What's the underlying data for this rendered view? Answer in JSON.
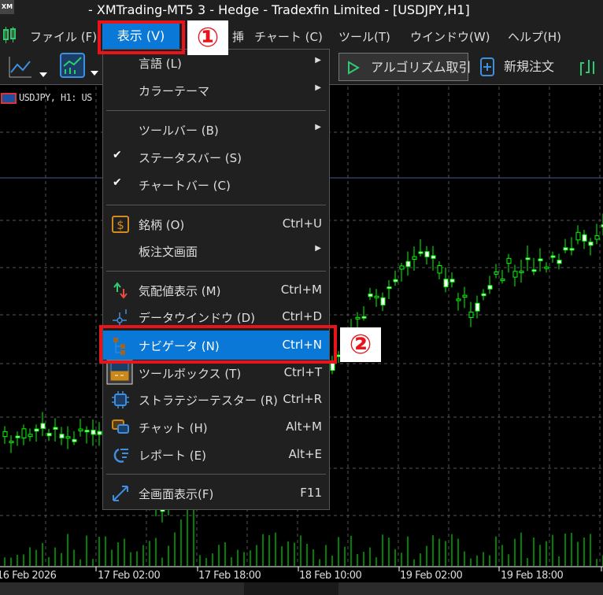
{
  "window": {
    "title": "- XMTrading-MT5 3 - Hedge - Tradexfin Limited - [USDJPY,H1]",
    "logo": "XM"
  },
  "menubar": {
    "items": [
      "ファイル (F)",
      "表示 (V)",
      "挿",
      "チャート (C)",
      "ツール(T)",
      "ウインドウ(W)",
      "ヘルプ(H)"
    ]
  },
  "toolbar": {
    "algo_trading": "アルゴリズム取引",
    "new_order": "新規注文"
  },
  "chart": {
    "symbol_label": "USDJPY, H1: US",
    "up_color": "#00ff00",
    "time_labels": [
      "16 Feb 2026",
      "17 Feb 02:00",
      "17 Feb 18:00",
      "18 Feb 10:00",
      "19 Feb 02:00",
      "19 Feb 18:00"
    ]
  },
  "dropdown": {
    "items": [
      {
        "label": "言語 (L)",
        "shortcut": "",
        "submenu": true
      },
      {
        "label": "カラーテーマ",
        "shortcut": "",
        "submenu": true
      },
      {
        "label": "ツールバー (B)",
        "shortcut": "",
        "submenu": true
      },
      {
        "label": "ステータスバー (S)",
        "shortcut": "",
        "checked": true
      },
      {
        "label": "チャートバー (C)",
        "shortcut": "",
        "checked": true
      },
      {
        "label": "銘柄 (O)",
        "shortcut": "Ctrl+U",
        "icon": "dollar-icon"
      },
      {
        "label": "板注文画面",
        "shortcut": "",
        "submenu": true
      },
      {
        "label": "気配値表示 (M)",
        "shortcut": "Ctrl+M",
        "icon": "market-watch-icon"
      },
      {
        "label": "データウインドウ (D)",
        "shortcut": "Ctrl+D",
        "icon": "crosshair-icon"
      },
      {
        "label": "ナビゲータ (N)",
        "shortcut": "Ctrl+N",
        "icon": "navigator-icon",
        "highlighted": true
      },
      {
        "label": "ツールボックス (T)",
        "shortcut": "Ctrl+T",
        "icon": "toolbox-icon"
      },
      {
        "label": "ストラテジーテスター (R)",
        "shortcut": "Ctrl+R",
        "icon": "chip-icon"
      },
      {
        "label": "チャット (H)",
        "shortcut": "Alt+M",
        "icon": "chat-icon"
      },
      {
        "label": "レポート (E)",
        "shortcut": "Alt+E",
        "icon": "report-icon"
      },
      {
        "label": "全画面表示(F)",
        "shortcut": "F11",
        "icon": "fullscreen-icon"
      }
    ]
  },
  "annotations": {
    "step1": "①",
    "step2": "②",
    "color": "#e8141c"
  }
}
